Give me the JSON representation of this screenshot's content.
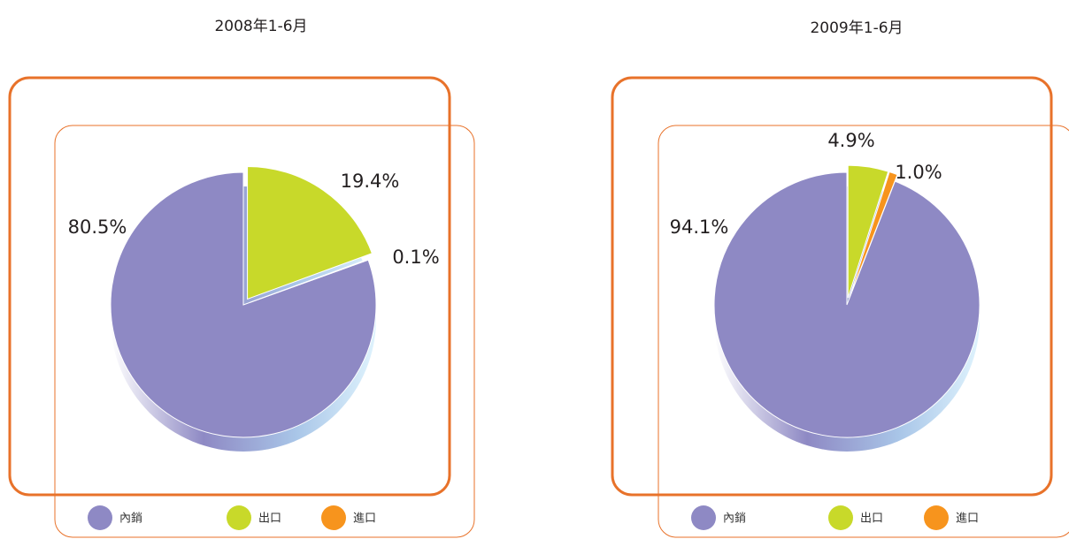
{
  "chart_data": [
    {
      "type": "pie",
      "title": "2008年1-6月",
      "categories": [
        "內銷",
        "出口",
        "進口"
      ],
      "values": [
        80.5,
        19.4,
        0.1
      ],
      "value_labels": [
        "80.5%",
        "19.4%",
        "0.1%"
      ],
      "colors": [
        "#8e89c4",
        "#c8d92a",
        "#f7941d"
      ]
    },
    {
      "type": "pie",
      "title": "2009年1-6月",
      "categories": [
        "內銷",
        "出口",
        "進口"
      ],
      "values": [
        94.1,
        4.9,
        1
      ],
      "value_labels": [
        "94.1%",
        "4.9%",
        "1.0%"
      ],
      "colors": [
        "#8e89c4",
        "#c8d92a",
        "#f7941d"
      ]
    }
  ]
}
